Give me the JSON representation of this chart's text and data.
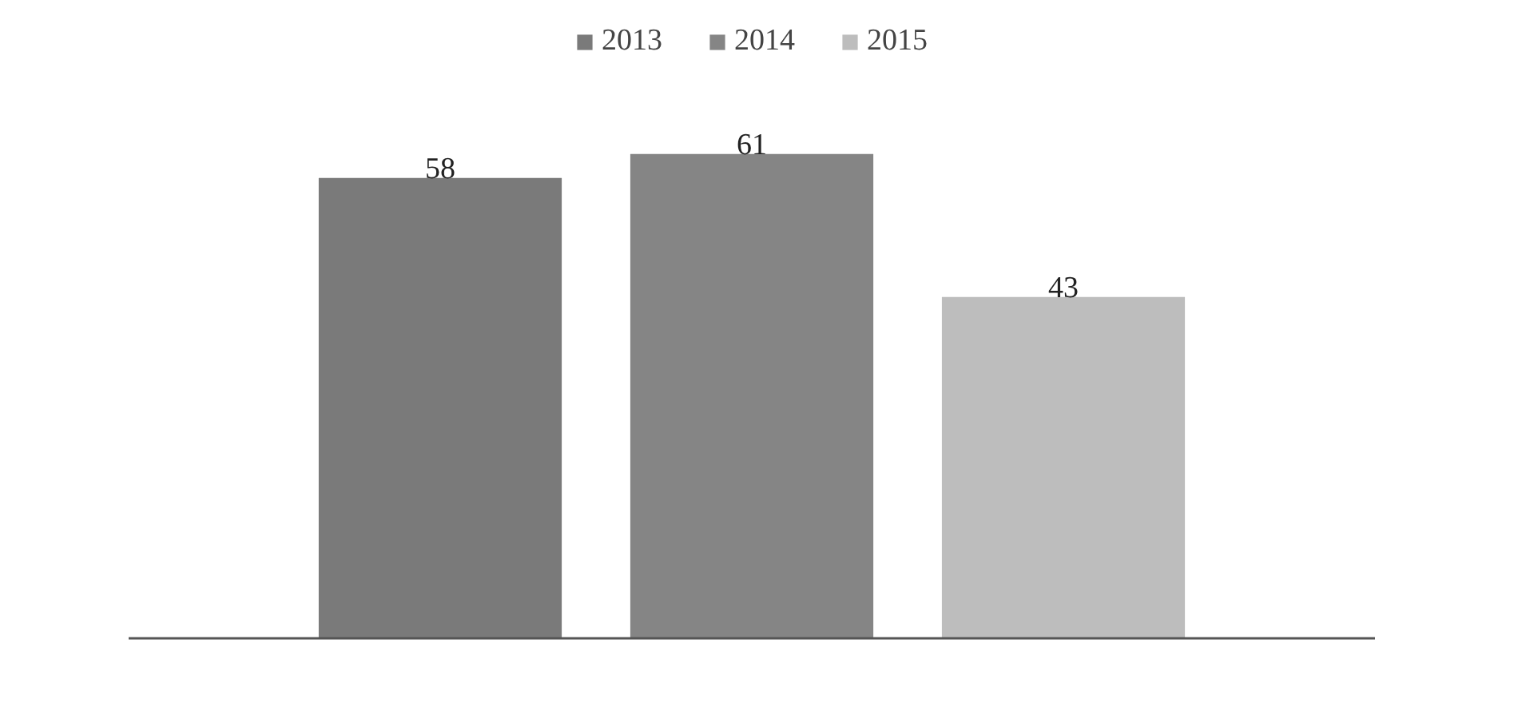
{
  "chart_data": {
    "type": "bar",
    "categories": [
      null
    ],
    "series": [
      {
        "name": "2013",
        "color": "#7a7a7a",
        "values": [
          58
        ]
      },
      {
        "name": "2014",
        "color": "#858585",
        "values": [
          61
        ]
      },
      {
        "name": "2015",
        "color": "#bdbdbd",
        "values": [
          43
        ]
      }
    ],
    "data_labels": true,
    "legend": "top"
  }
}
